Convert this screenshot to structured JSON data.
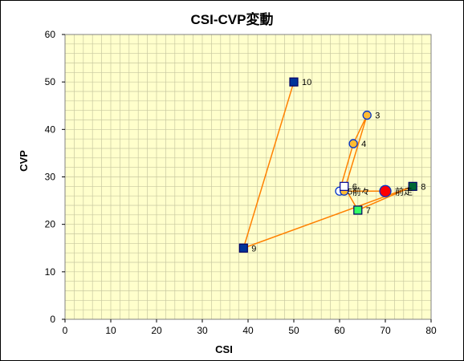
{
  "chart_data": {
    "type": "scatter",
    "title": "CSI-CVP変動",
    "xlabel": "CSI",
    "ylabel": "CVP",
    "xlim": [
      0,
      80
    ],
    "ylim": [
      0,
      60
    ],
    "x_ticks": [
      0,
      10,
      20,
      30,
      40,
      50,
      60,
      70,
      80
    ],
    "y_ticks": [
      0,
      10,
      20,
      30,
      40,
      50,
      60
    ],
    "grid": "on",
    "plot_background": "#ffffcc",
    "grid_color": "#c8c8a0",
    "line_color": "#ff8000",
    "path_order": [
      "10",
      "9",
      "8",
      "7",
      "6",
      "5",
      "4",
      "3",
      "前々",
      "前走"
    ],
    "points": [
      {
        "label": "10",
        "x": 50,
        "y": 50,
        "marker": "square",
        "fill": "#003399",
        "stroke": "#000066"
      },
      {
        "label": "9",
        "x": 39,
        "y": 15,
        "marker": "square",
        "fill": "#003399",
        "stroke": "#000066"
      },
      {
        "label": "8",
        "x": 76,
        "y": 28,
        "marker": "square",
        "fill": "#006633",
        "stroke": "#000066"
      },
      {
        "label": "7",
        "x": 64,
        "y": 23,
        "marker": "square",
        "fill": "#33ff66",
        "stroke": "#000066"
      },
      {
        "label": "6",
        "x": 61,
        "y": 28,
        "marker": "square",
        "fill": "#ffffff",
        "stroke": "#000099"
      },
      {
        "label": "5",
        "x": 60,
        "y": 27,
        "marker": "circle",
        "fill": "#ffffff",
        "stroke": "#0033cc"
      },
      {
        "label": "4",
        "x": 63,
        "y": 37,
        "marker": "circle",
        "fill": "#ffbb33",
        "stroke": "#0033cc"
      },
      {
        "label": "3",
        "x": 66,
        "y": 43,
        "marker": "circle",
        "fill": "#ffbb33",
        "stroke": "#0033cc"
      },
      {
        "label": "前々",
        "x": 61,
        "y": 27,
        "marker": "circle",
        "fill": "#ffbb33",
        "stroke": "#0033cc"
      },
      {
        "label": "前走",
        "x": 70,
        "y": 27,
        "marker": "circle-large",
        "fill": "#ff0000",
        "stroke": "#0033cc"
      }
    ]
  }
}
